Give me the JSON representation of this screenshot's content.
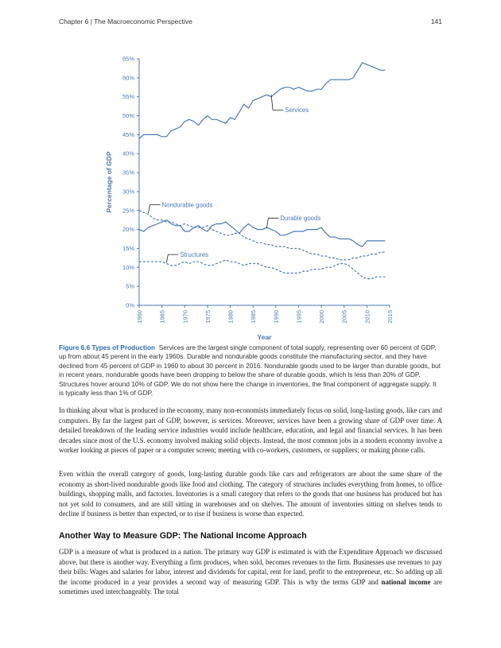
{
  "header": {
    "chapter": "Chapter 6 | The Macroeconomic Perspective",
    "page_number": "141"
  },
  "chart_data": {
    "type": "line",
    "ylabel": "Percentage of GDP",
    "xlabel": "Year",
    "ylim": [
      0,
      65
    ],
    "xlim": [
      1960,
      2015
    ],
    "y_ticks": [
      "0%",
      "5%",
      "10%",
      "15%",
      "20%",
      "25%",
      "30%",
      "35%",
      "40%",
      "45%",
      "50%",
      "55%",
      "60%",
      "65%"
    ],
    "x_ticks": [
      "1960",
      "1965",
      "1970",
      "1975",
      "1980",
      "1985",
      "1990",
      "1995",
      "2000",
      "2005",
      "2010",
      "2015"
    ],
    "grid": false,
    "colors": {
      "axis": "#4a7ab8",
      "series": "#4a7ab8"
    },
    "series": [
      {
        "name": "Services",
        "style": "solid",
        "x": [
          1960,
          1961,
          1962,
          1963,
          1964,
          1965,
          1966,
          1967,
          1968,
          1969,
          1970,
          1971,
          1972,
          1973,
          1974,
          1975,
          1976,
          1977,
          1978,
          1979,
          1980,
          1981,
          1982,
          1983,
          1984,
          1985,
          1986,
          1987,
          1988,
          1989,
          1990,
          1991,
          1992,
          1993,
          1994,
          1995,
          1996,
          1997,
          1998,
          1999,
          2000,
          2001,
          2002,
          2003,
          2004,
          2005,
          2006,
          2007,
          2008,
          2009,
          2010,
          2011,
          2012,
          2013,
          2014
        ],
        "values": [
          44,
          45,
          45,
          45,
          45,
          44.5,
          44.5,
          46,
          46.5,
          47,
          48.5,
          49,
          48.5,
          47.5,
          49,
          50,
          49,
          49,
          48.5,
          48,
          49.5,
          49,
          51,
          53,
          52,
          54,
          54.5,
          55,
          55.5,
          55,
          56,
          57,
          57.5,
          57.5,
          57,
          57.5,
          57,
          56.5,
          56.5,
          57,
          57,
          58.5,
          59.5,
          59.5,
          59.5,
          59.5,
          59.5,
          60,
          62,
          64,
          63.5,
          63,
          62.5,
          62,
          62
        ]
      },
      {
        "name": "Durable goods",
        "style": "solid",
        "x": [
          1960,
          1961,
          1962,
          1963,
          1964,
          1965,
          1966,
          1967,
          1968,
          1969,
          1970,
          1971,
          1972,
          1973,
          1974,
          1975,
          1976,
          1977,
          1978,
          1979,
          1980,
          1981,
          1982,
          1983,
          1984,
          1985,
          1986,
          1987,
          1988,
          1989,
          1990,
          1991,
          1992,
          1993,
          1994,
          1995,
          1996,
          1997,
          1998,
          1999,
          2000,
          2001,
          2002,
          2003,
          2004,
          2005,
          2006,
          2007,
          2008,
          2009,
          2010,
          2011,
          2012,
          2013,
          2014
        ],
        "values": [
          20,
          19.5,
          20.5,
          21,
          21.5,
          22,
          22.5,
          21.5,
          21,
          21,
          19.5,
          19.5,
          20.5,
          21,
          20,
          19.5,
          21,
          21.5,
          21.5,
          22,
          21,
          20,
          19,
          20.5,
          21.5,
          20.5,
          20,
          20,
          20.5,
          20,
          19.5,
          18.5,
          18.5,
          19,
          19.5,
          19.5,
          19.5,
          20,
          20,
          20,
          20.5,
          19,
          18,
          18,
          17.5,
          17.5,
          17.5,
          17,
          16,
          15.5,
          17,
          17,
          17,
          17,
          17
        ]
      },
      {
        "name": "Nondurable goods",
        "style": "dashed",
        "x": [
          1960,
          1961,
          1962,
          1963,
          1964,
          1965,
          1966,
          1967,
          1968,
          1969,
          1970,
          1971,
          1972,
          1973,
          1974,
          1975,
          1976,
          1977,
          1978,
          1979,
          1980,
          1981,
          1982,
          1983,
          1984,
          1985,
          1986,
          1987,
          1988,
          1989,
          1990,
          1991,
          1992,
          1993,
          1994,
          1995,
          1996,
          1997,
          1998,
          1999,
          2000,
          2001,
          2002,
          2003,
          2004,
          2005,
          2006,
          2007,
          2008,
          2009,
          2010,
          2011,
          2012,
          2013,
          2014
        ],
        "values": [
          25,
          24.5,
          24,
          23,
          22.5,
          22.5,
          22,
          22,
          21.5,
          21,
          21.5,
          21,
          20.5,
          20.5,
          20.5,
          21,
          20,
          19.5,
          19,
          18.5,
          18.5,
          19,
          19,
          18,
          17.5,
          17,
          16.5,
          16.5,
          16,
          16,
          15.5,
          15.5,
          15.5,
          15,
          15,
          15,
          14.5,
          14,
          13.5,
          13.5,
          13,
          13,
          12.5,
          12.5,
          12,
          12,
          12,
          12.5,
          12.5,
          13,
          13,
          13.5,
          13.5,
          14,
          14
        ]
      },
      {
        "name": "Structures",
        "style": "dashed",
        "x": [
          1960,
          1961,
          1962,
          1963,
          1964,
          1965,
          1966,
          1967,
          1968,
          1969,
          1970,
          1971,
          1972,
          1973,
          1974,
          1975,
          1976,
          1977,
          1978,
          1979,
          1980,
          1981,
          1982,
          1983,
          1984,
          1985,
          1986,
          1987,
          1988,
          1989,
          1990,
          1991,
          1992,
          1993,
          1994,
          1995,
          1996,
          1997,
          1998,
          1999,
          2000,
          2001,
          2002,
          2003,
          2004,
          2005,
          2006,
          2007,
          2008,
          2009,
          2010,
          2011,
          2012,
          2013,
          2014
        ],
        "values": [
          11.5,
          11.5,
          11.5,
          11.5,
          11.5,
          11.5,
          11,
          10.5,
          10.5,
          11,
          11.5,
          11,
          11.5,
          11.5,
          11,
          10.5,
          10.5,
          11,
          11.5,
          12,
          11.5,
          11.5,
          11,
          10.5,
          11,
          11,
          11,
          10.5,
          10,
          10,
          9.5,
          9,
          8.5,
          8.5,
          8.5,
          8.5,
          9,
          9,
          9.5,
          9.5,
          9.5,
          10,
          10,
          10.5,
          11,
          11,
          10.5,
          9.5,
          8.5,
          7.5,
          7,
          7,
          7.5,
          7.5,
          7.5
        ]
      }
    ]
  },
  "caption": {
    "label": "Figure 6.6 Types of Production",
    "text": "Services are the largest single component of total supply, representing over 60 percent of GDP, up from about 45 perent in the early 1960s. Durable and nondurable goods constitute the manufacturing sector, and they have declined from 45 percent of GDP in 1960 to about 30 percent in 2016. Nondurable goods used to be larger than durable goods, but in recent years, nondurable goods have been dropping to below the share of durable goods, which is less than 20% of GDP. Structures hover around 10% of GDP. We do not show here the change in inventories, the final component of aggregate supply. It is typically less than 1% of GDP."
  },
  "paragraphs": [
    "In thinking about what is produced in the economy, many non-economists immediately focus on solid, long-lasting goods, like cars and computers. By far the largest part of GDP, however, is services. Moreover, services have been a growing share of GDP over time. A detailed breakdown of the leading service industries would include healthcare, education, and legal and financial services. It has been decades since most of the U.S. economy involved making solid objects. Instead, the most common jobs in a modern economy involve a worker looking at pieces of paper or a computer screen; meeting with co-workers, customers, or suppliers; or making phone calls.",
    "Even within the overall category of goods, long-lasting durable goods like cars and refrigerators are about the same share of the economy as short-lived nondurable goods like food and clothing. The category of structures includes everything from homes, to office buildings, shopping malls, and factories. Inventories is a small category that refers to the goods that one business has produced but has not yet sold to consumers, and are still sitting in warehouses and on shelves. The amount of inventories sitting on shelves tends to decline if business is better than expected, or to rise if business is worse than expected."
  ],
  "section": {
    "heading": "Another Way to Measure GDP: The National Income Approach",
    "para_before": "GDP is a measure of what is produced in a nation. The primary way GDP is estimated is with the Expenditure Approach we discussed above, but there is another way. Everything a firm produces, when sold, becomes revenues to the firm. Businesses use revenues to pay their bills: Wages and salaries for labor, interest and dividends for capital, rent for land, profit to the entrepreneur, etc. So adding up all the income produced in a year provides a second way of measuring GDP. This is why the terms GDP and ",
    "para_bold": "national income",
    "para_after": " are sometimes used interchangeably. The total"
  }
}
